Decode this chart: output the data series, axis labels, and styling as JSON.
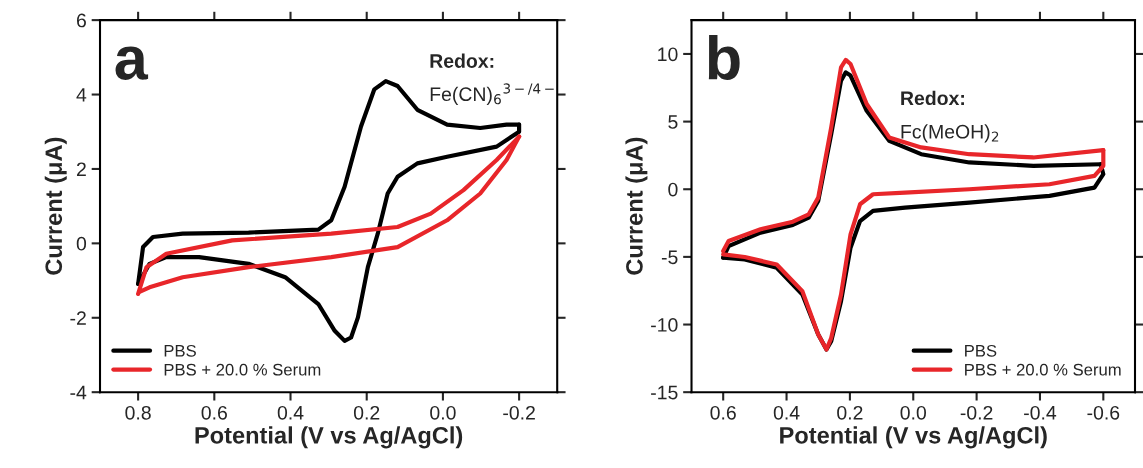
{
  "chart_data": [
    {
      "type": "line",
      "xlabel": "Potential (V vs Ag/AgCl)",
      "ylabel": "Current (μA)",
      "annotations": [
        "a",
        "Redox:",
        "Fe(CN)$_{6}$$^{3−/4−}$"
      ],
      "xlim": [
        0.9,
        -0.3
      ],
      "xticks": [
        0.8,
        0.6,
        0.4,
        0.2,
        {
          "value": 0,
          "label": "0.0"
        },
        -0.2
      ],
      "ylim": [
        -4,
        6
      ],
      "yticks": [
        -4,
        -2,
        0,
        2,
        4,
        6
      ],
      "grid": false,
      "legend": "bottom left",
      "marker": "none",
      "line_style": "solid",
      "series": [
        {
          "name": "PBS",
          "color": "#000000",
          "x": [
            0.8,
            0.787,
            0.761,
            0.683,
            0.51,
            0.327,
            0.293,
            0.258,
            0.215,
            0.18,
            0.15,
            0.119,
            0.067,
            -0.011,
            -0.098,
            -0.167,
            -0.2
          ],
          "values": [
            -1.09,
            -0.1,
            0.17,
            0.26,
            0.29,
            0.37,
            0.62,
            1.52,
            3.14,
            4.14,
            4.36,
            4.23,
            3.59,
            3.19,
            3.1,
            3.19,
            3.19
          ]
        },
        {
          "color": "#000000",
          "x": [
            -0.2,
            -0.2,
            -0.141,
            -0.011,
            0.067,
            0.119,
            0.145,
            0.171,
            0.197,
            0.223,
            0.241,
            0.258,
            0.284,
            0.327,
            0.414,
            0.51,
            0.64,
            0.726,
            0.77,
            0.8
          ],
          "values": [
            3.19,
            3.0,
            2.6,
            2.33,
            2.15,
            1.79,
            1.34,
            0.26,
            -0.64,
            -1.99,
            -2.53,
            -2.62,
            -2.35,
            -1.63,
            -0.91,
            -0.55,
            -0.37,
            -0.37,
            -0.55,
            -1.09
          ]
        },
        {
          "name": "PBS + 20.0 % Serum",
          "color": "#e8262a",
          "x": [
            0.8,
            0.778,
            0.726,
            0.553,
            0.293,
            0.119,
            0.032,
            -0.054,
            -0.141,
            -0.2
          ],
          "values": [
            -1.36,
            -0.64,
            -0.28,
            0.08,
            0.26,
            0.44,
            0.8,
            1.43,
            2.24,
            2.87
          ]
        },
        {
          "color": "#e8262a",
          "x": [
            -0.2,
            -0.167,
            -0.098,
            -0.011,
            0.119,
            0.293,
            0.51,
            0.683,
            0.77,
            0.795
          ],
          "values": [
            2.87,
            2.24,
            1.34,
            0.62,
            -0.1,
            -0.37,
            -0.64,
            -0.91,
            -1.18,
            -1.3
          ]
        }
      ]
    },
    {
      "type": "line",
      "xlabel": "Potential (V vs Ag/AgCl)",
      "ylabel": "Current (μA)",
      "annotations": [
        "b",
        "Redox:",
        "Fc(MeOH)$_{2}$"
      ],
      "xlim": [
        0.7,
        -0.7
      ],
      "xticks": [
        0.6,
        0.4,
        0.2,
        {
          "value": 0,
          "label": "0.0"
        },
        -0.2,
        -0.4,
        -0.6
      ],
      "ylim": [
        -15,
        12.5
      ],
      "yticks": [
        -15,
        -10,
        -5,
        0,
        5,
        10
      ],
      "grid": false,
      "legend": "bottom right",
      "marker": "none",
      "line_style": "solid",
      "series": [
        {
          "name": "PBS",
          "color": "#000000",
          "x": [
            0.6,
            0.583,
            0.482,
            0.38,
            0.33,
            0.3,
            0.259,
            0.228,
            0.213,
            0.198,
            0.147,
            0.076,
            -0.025,
            -0.177,
            -0.379,
            -0.592
          ],
          "values": [
            -5.06,
            -4.2,
            -3.21,
            -2.64,
            -2.1,
            -0.86,
            4.07,
            8.02,
            8.64,
            8.4,
            5.8,
            3.58,
            2.59,
            1.98,
            1.73,
            1.85
          ]
        },
        {
          "color": "#000000",
          "x": [
            -0.592,
            -0.6,
            -0.572,
            -0.43,
            -0.177,
            0.026,
            0.127,
            0.168,
            0.198,
            0.228,
            0.259,
            0.274,
            0.3,
            0.35,
            0.431,
            0.532,
            0.6
          ],
          "values": [
            1.85,
            1.11,
            0.12,
            -0.49,
            -0.99,
            -1.36,
            -1.6,
            -2.35,
            -4.32,
            -8.27,
            -11.23,
            -11.85,
            -10.74,
            -7.78,
            -5.8,
            -5.19,
            -5.06
          ]
        },
        {
          "name": "PBS + 20.0 % Serum",
          "color": "#e8262a",
          "x": [
            0.6,
            0.583,
            0.482,
            0.38,
            0.33,
            0.3,
            0.259,
            0.228,
            0.213,
            0.198,
            0.147,
            0.076,
            -0.025,
            -0.177,
            -0.379,
            -0.6
          ],
          "values": [
            -4.57,
            -3.83,
            -2.96,
            -2.4,
            -1.85,
            -0.62,
            4.57,
            9.01,
            9.56,
            9.26,
            6.3,
            3.83,
            3.09,
            2.59,
            2.35,
            2.89
          ]
        },
        {
          "color": "#e8262a",
          "x": [
            -0.6,
            -0.6,
            -0.572,
            -0.43,
            -0.177,
            0.026,
            0.127,
            0.168,
            0.198,
            0.228,
            0.259,
            0.274,
            0.3,
            0.35,
            0.431,
            0.532,
            0.6
          ],
          "values": [
            2.89,
            1.73,
            0.99,
            0.37,
            0.0,
            -0.25,
            -0.37,
            -1.11,
            -3.33,
            -7.78,
            -10.99,
            -11.85,
            -10.74,
            -7.53,
            -5.56,
            -5.01,
            -4.81
          ]
        }
      ]
    }
  ]
}
